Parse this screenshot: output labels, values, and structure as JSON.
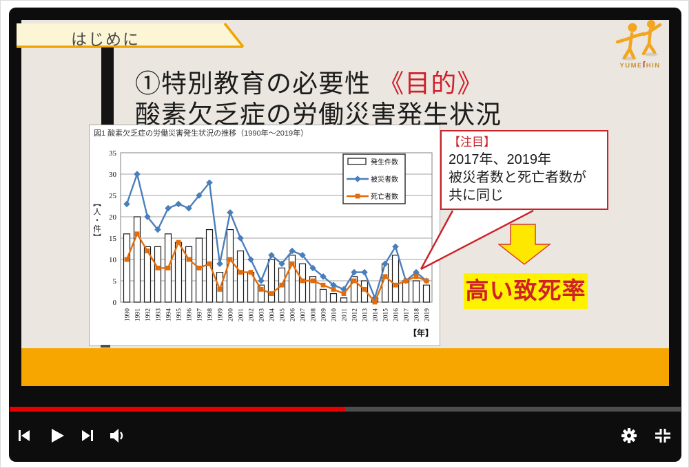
{
  "window": {
    "tab_label": "はじめに"
  },
  "logo": {
    "text_left": "YUME",
    "text_s": "ſ",
    "text_right": "HIN"
  },
  "slide": {
    "title_line1_black": "①特別教育の必要性 ",
    "title_line1_red": "《目的》",
    "title_line2": "酸素欠乏症の労働災害発生状況",
    "callout": {
      "heading": "【注目】",
      "lines": [
        "2017年、2019年",
        "被災者数と死亡者数が",
        "共に同じ"
      ]
    },
    "conclusion": "高い致死率"
  },
  "chart_data": {
    "type": "bar",
    "title": "図1 酸素欠乏症の労働災害発生状況の推移（1990年～2019年）",
    "xlabel": "【年】",
    "ylabel": "【人・件】",
    "ylim": [
      0,
      35
    ],
    "ytick_step": 5,
    "grid": true,
    "legend_position": "upper right",
    "categories": [
      1990,
      1991,
      1992,
      1993,
      1994,
      1995,
      1996,
      1997,
      1998,
      1999,
      2000,
      2001,
      2002,
      2003,
      2004,
      2005,
      2006,
      2007,
      2008,
      2009,
      2010,
      2011,
      2012,
      2013,
      2014,
      2015,
      2016,
      2017,
      2018,
      2019
    ],
    "series": [
      {
        "name": "発生件数",
        "type": "bar",
        "color": "#ffffff",
        "values": [
          16,
          20,
          13,
          13,
          16,
          14,
          13,
          15,
          17,
          7,
          17,
          12,
          7,
          4,
          10,
          8,
          11,
          9,
          6,
          3,
          2,
          1,
          6,
          5,
          1,
          9,
          11,
          5,
          5,
          4
        ]
      },
      {
        "name": "被災者数",
        "type": "line",
        "marker": "diamond",
        "color": "#4A7EBB",
        "values": [
          23,
          30,
          20,
          17,
          22,
          23,
          22,
          25,
          28,
          9,
          21,
          15,
          10,
          5,
          11,
          9,
          12,
          11,
          8,
          6,
          4,
          3,
          7,
          7,
          1,
          9,
          13,
          5,
          7,
          5
        ]
      },
      {
        "name": "死亡者数",
        "type": "line",
        "marker": "square",
        "color": "#E36C0A",
        "values": [
          10,
          16,
          12,
          8,
          8,
          14,
          10,
          8,
          9,
          3,
          10,
          7,
          7,
          3,
          2,
          4,
          9,
          5,
          5,
          4,
          3,
          2,
          5,
          3,
          0,
          6,
          4,
          5,
          6,
          5
        ]
      }
    ]
  },
  "colors": {
    "slide_bg": "#EBE7E0",
    "band_orange": "#F7A600",
    "accent_red": "#D0202A",
    "callout_red": "#CC2229",
    "highlight_yellow": "#FFF200",
    "series_blue": "#4A7EBB",
    "series_orange": "#E36C0A"
  },
  "player": {
    "progress_percent": 50,
    "icons": [
      "previous-icon",
      "play-icon",
      "next-icon",
      "volume-icon",
      "settings-icon",
      "exit-fullscreen-icon"
    ]
  }
}
